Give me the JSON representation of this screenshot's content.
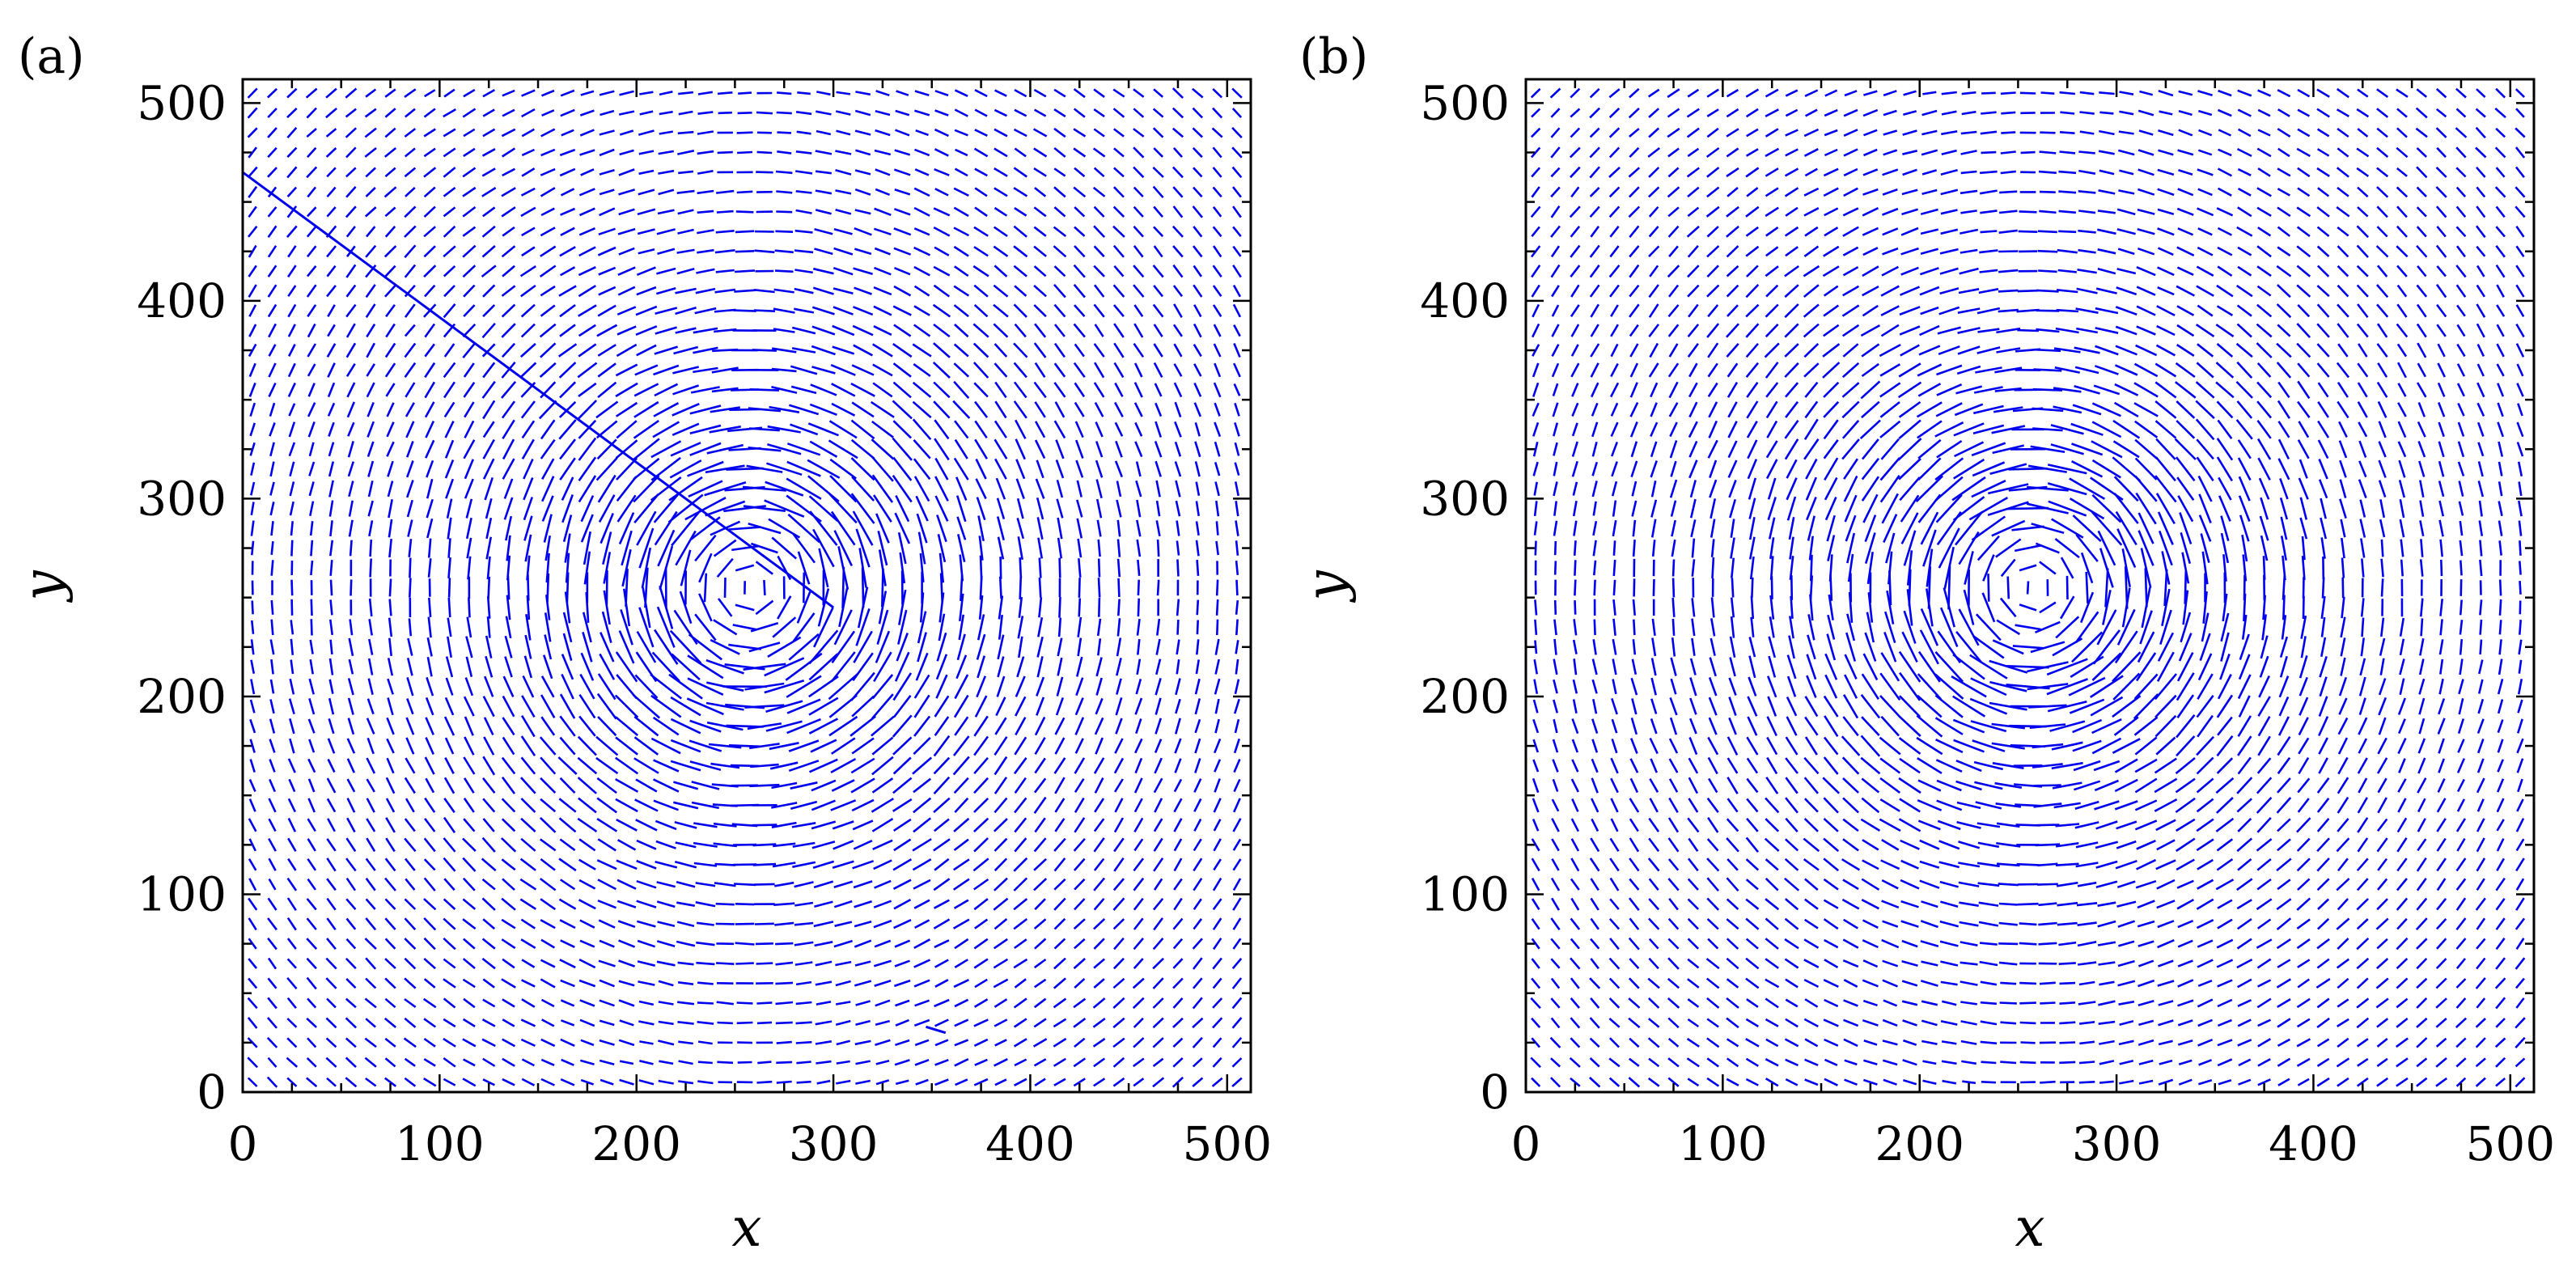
{
  "colors": {
    "arrow": "#0000ee",
    "axes": "#000000",
    "background": "#ffffff"
  },
  "chart_data": [
    {
      "type": "quiver",
      "panel_label": "(a)",
      "xlabel": "x",
      "ylabel": "y",
      "xlim": [
        0,
        512
      ],
      "ylim": [
        0,
        512
      ],
      "xticks": [
        0,
        100,
        200,
        300,
        400,
        500
      ],
      "yticks": [
        0,
        100,
        200,
        300,
        400,
        500
      ],
      "xtick_labels": [
        "0",
        "100",
        "200",
        "300",
        "400",
        "500"
      ],
      "ytick_labels": [
        "0",
        "100",
        "200",
        "300",
        "400",
        "500"
      ],
      "grid": false,
      "vector_grid_spacing": 10,
      "vortex_center": [
        258,
        255
      ],
      "vortex_core_radius": 45,
      "rotation": "counter-clockwise",
      "outliers": [
        {
          "x0": 0,
          "y0": 465,
          "x1": 300,
          "y1": 245
        },
        {
          "x0": 347,
          "y0": 33,
          "x1": 357,
          "y1": 30
        }
      ]
    },
    {
      "type": "quiver",
      "panel_label": "(b)",
      "xlabel": "x",
      "ylabel": "y",
      "xlim": [
        0,
        512
      ],
      "ylim": [
        0,
        512
      ],
      "xticks": [
        0,
        100,
        200,
        300,
        400,
        500
      ],
      "yticks": [
        0,
        100,
        200,
        300,
        400,
        500
      ],
      "xtick_labels": [
        "0",
        "100",
        "200",
        "300",
        "400",
        "500"
      ],
      "ytick_labels": [
        "0",
        "100",
        "200",
        "300",
        "400",
        "500"
      ],
      "grid": false,
      "vector_grid_spacing": 10,
      "vortex_center": [
        258,
        255
      ],
      "vortex_core_radius": 45,
      "rotation": "counter-clockwise",
      "outliers": []
    }
  ]
}
